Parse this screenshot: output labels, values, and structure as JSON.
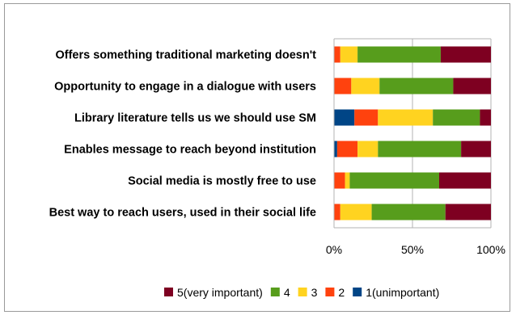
{
  "chart_data": {
    "type": "bar",
    "orientation": "horizontal",
    "stacked": "100%",
    "categories": [
      "Offers something traditional marketing doesn't",
      "Opportunity to engage in a dialogue with users",
      "Library literature tells us we should use SM",
      "Enables message to reach beyond institution",
      "Social media is mostly free to use",
      "Best way to reach users, used in their social life"
    ],
    "series": [
      {
        "name": "1(unimportant)",
        "color": "#004586",
        "values": [
          0,
          0,
          13,
          2,
          0,
          0
        ]
      },
      {
        "name": "2",
        "color": "#ff420e",
        "values": [
          4,
          11,
          15,
          13,
          7,
          4
        ]
      },
      {
        "name": "3",
        "color": "#ffd320",
        "values": [
          11,
          18,
          35,
          13,
          3,
          20
        ]
      },
      {
        "name": "4",
        "color": "#579d1c",
        "values": [
          53,
          47,
          30,
          53,
          57,
          47
        ]
      },
      {
        "name": "5(very important)",
        "color": "#7e0021",
        "values": [
          32,
          24,
          7,
          19,
          33,
          29
        ]
      }
    ],
    "xticks": [
      "0%",
      "50%",
      "100%"
    ],
    "xlim": [
      0,
      100
    ],
    "grid": true,
    "legend": {
      "position": "bottom",
      "order": [
        "5(very important)",
        "4",
        "3",
        "2",
        "1(unimportant)"
      ]
    }
  }
}
